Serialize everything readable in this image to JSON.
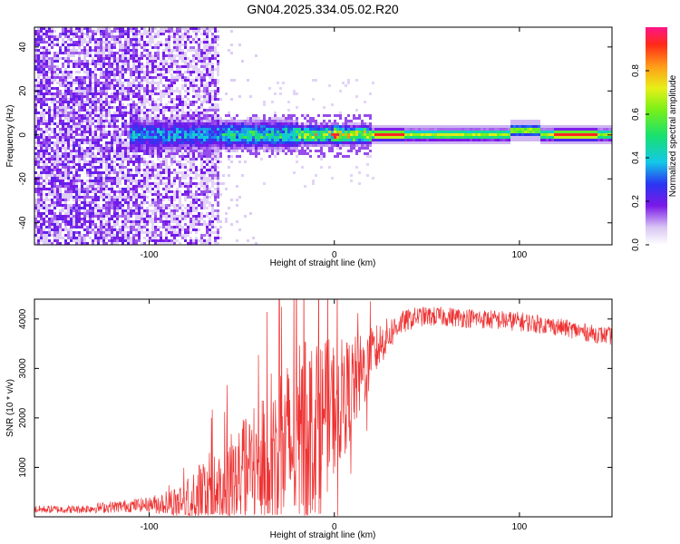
{
  "title": "GN04.2025.334.05.02.R20",
  "chart_data": [
    {
      "type": "heatmap",
      "xlabel": "Height of straight line (km)",
      "ylabel": "Frequency (Hz)",
      "xlim": [
        -162,
        150
      ],
      "ylim": [
        -50,
        49
      ],
      "xticks": [
        -100,
        0,
        100
      ],
      "yticks": [
        -40,
        -20,
        0,
        20,
        40
      ],
      "colorbar": {
        "label": "Normalized spectral amplitude",
        "range": [
          0,
          1
        ],
        "ticks": [
          0.0,
          0.2,
          0.4,
          0.6,
          0.8
        ],
        "tick_labels": [
          "0.0",
          "0.2",
          "0.4",
          "0.6",
          "0.8"
        ]
      },
      "description_points": {
        "noise_region_x": [
          -162,
          -62
        ],
        "signal_center_freq": 0,
        "signal_start_x": -100,
        "peak_x": [
          0,
          20,
          30,
          60,
          100,
          130
        ]
      }
    },
    {
      "type": "line",
      "xlabel": "Height of straight line (km)",
      "ylabel": "SNR (10 * v/v)",
      "xlim": [
        -162,
        150
      ],
      "ylim": [
        0,
        4400
      ],
      "xticks": [
        -100,
        0,
        100
      ],
      "yticks": [
        1000,
        2000,
        3000,
        4000
      ],
      "color": "#ee3333",
      "envelope": {
        "x": [
          -162,
          -140,
          -120,
          -100,
          -85,
          -75,
          -65,
          -55,
          -45,
          -35,
          -25,
          -15,
          -5,
          5,
          15,
          25,
          35,
          45,
          60,
          80,
          100,
          120,
          140,
          150
        ],
        "base": [
          150,
          150,
          200,
          250,
          300,
          400,
          500,
          700,
          900,
          1100,
          1400,
          1700,
          2000,
          2400,
          2900,
          3500,
          3900,
          4050,
          4050,
          4000,
          3950,
          3850,
          3700,
          3650
        ],
        "amp": [
          80,
          80,
          120,
          150,
          350,
          600,
          900,
          1100,
          1200,
          1500,
          1800,
          1900,
          1600,
          1200,
          800,
          450,
          250,
          200,
          200,
          200,
          200,
          180,
          180,
          180
        ]
      }
    }
  ]
}
